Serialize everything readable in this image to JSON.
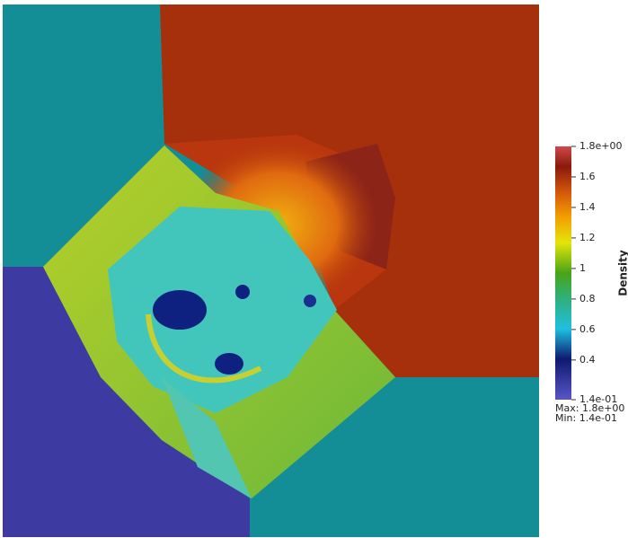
{
  "colorbar": {
    "title": "Density",
    "range": [
      0.14,
      1.8
    ],
    "ticks": [
      {
        "value": 1.8,
        "label": "1.8e+00"
      },
      1.6,
      1.4,
      1.2,
      1,
      0.8,
      0.6,
      0.4,
      {
        "value": 0.14,
        "label": "1.4e-01"
      }
    ],
    "max_label": "Max: 1.8e+00",
    "min_label": "Min: 1.4e-01"
  }
}
